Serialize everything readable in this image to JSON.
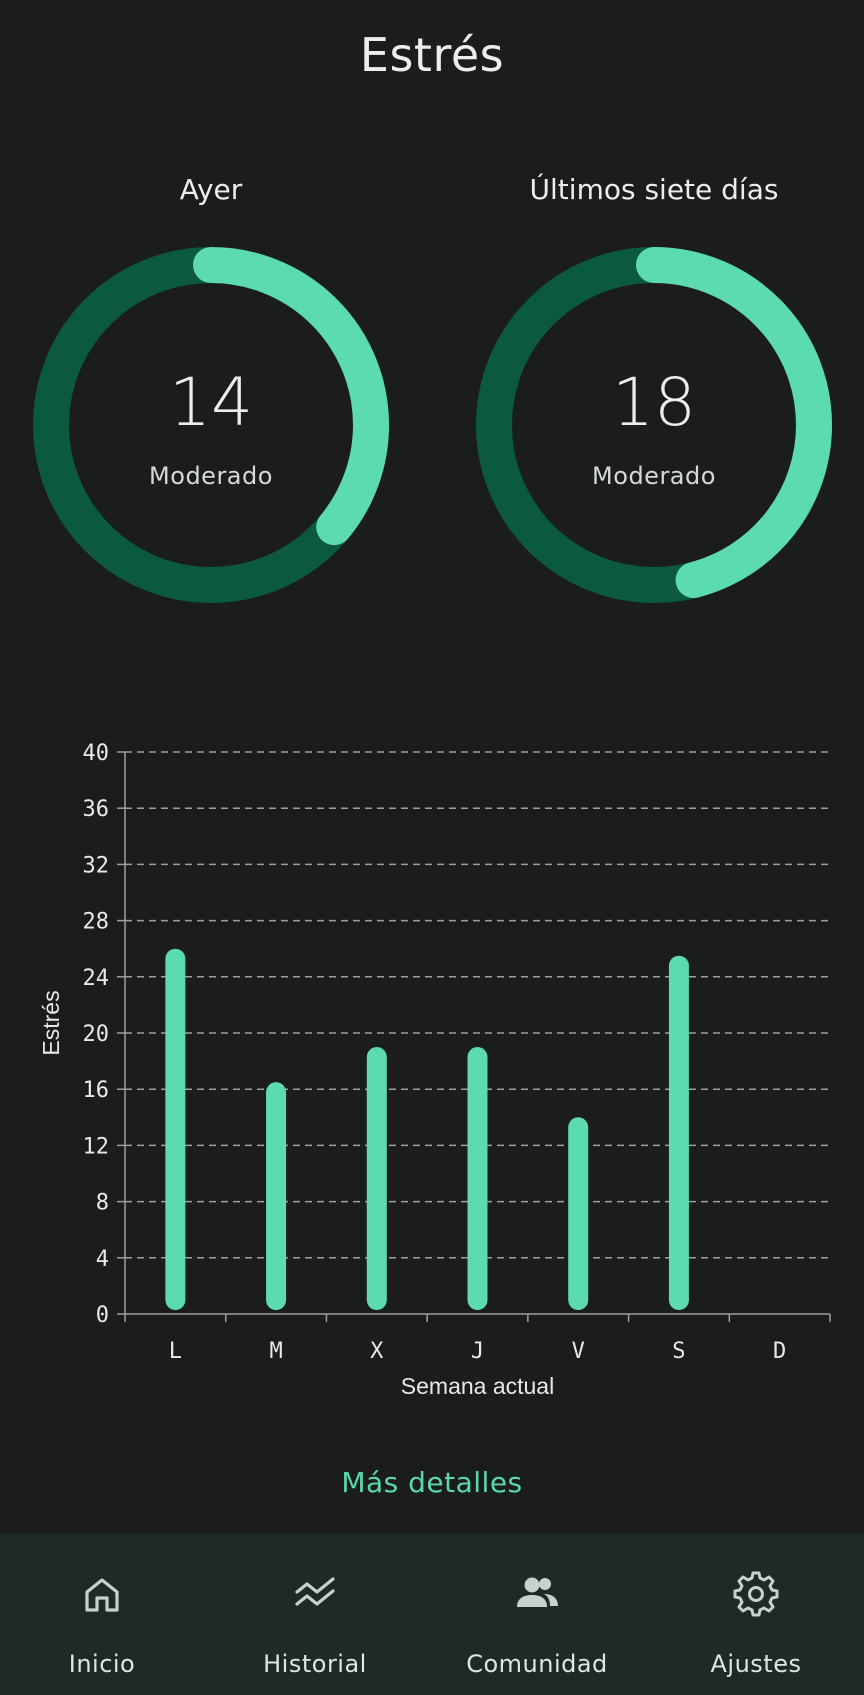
{
  "header": {
    "title": "Estrés"
  },
  "summary": [
    {
      "label": "Ayer",
      "value": "14",
      "level": "Moderado",
      "fraction": 0.36
    },
    {
      "label": "Últimos siete días",
      "value": "18",
      "level": "Moderado",
      "fraction": 0.46
    }
  ],
  "colors": {
    "accent": "#5cdbb0",
    "ring_track": "#0b5a40",
    "background": "#1b1d1d",
    "nav_background": "#1f2927",
    "grid": "#9aa09e"
  },
  "chart_data": {
    "type": "bar",
    "categories": [
      "L",
      "M",
      "X",
      "J",
      "V",
      "S",
      "D"
    ],
    "values": [
      26,
      16.5,
      19,
      19,
      14,
      25.5,
      null
    ],
    "xlabel": "Semana actual",
    "ylabel": "Estrés",
    "ylim": [
      0,
      40
    ],
    "yticks": [
      0,
      4,
      8,
      12,
      16,
      20,
      24,
      28,
      32,
      36,
      40
    ],
    "grid": true
  },
  "more_link": "Más detalles",
  "nav": [
    {
      "label": "Inicio",
      "icon": "home-icon"
    },
    {
      "label": "Historial",
      "icon": "history-icon"
    },
    {
      "label": "Comunidad",
      "icon": "community-icon"
    },
    {
      "label": "Ajustes",
      "icon": "settings-icon"
    }
  ]
}
